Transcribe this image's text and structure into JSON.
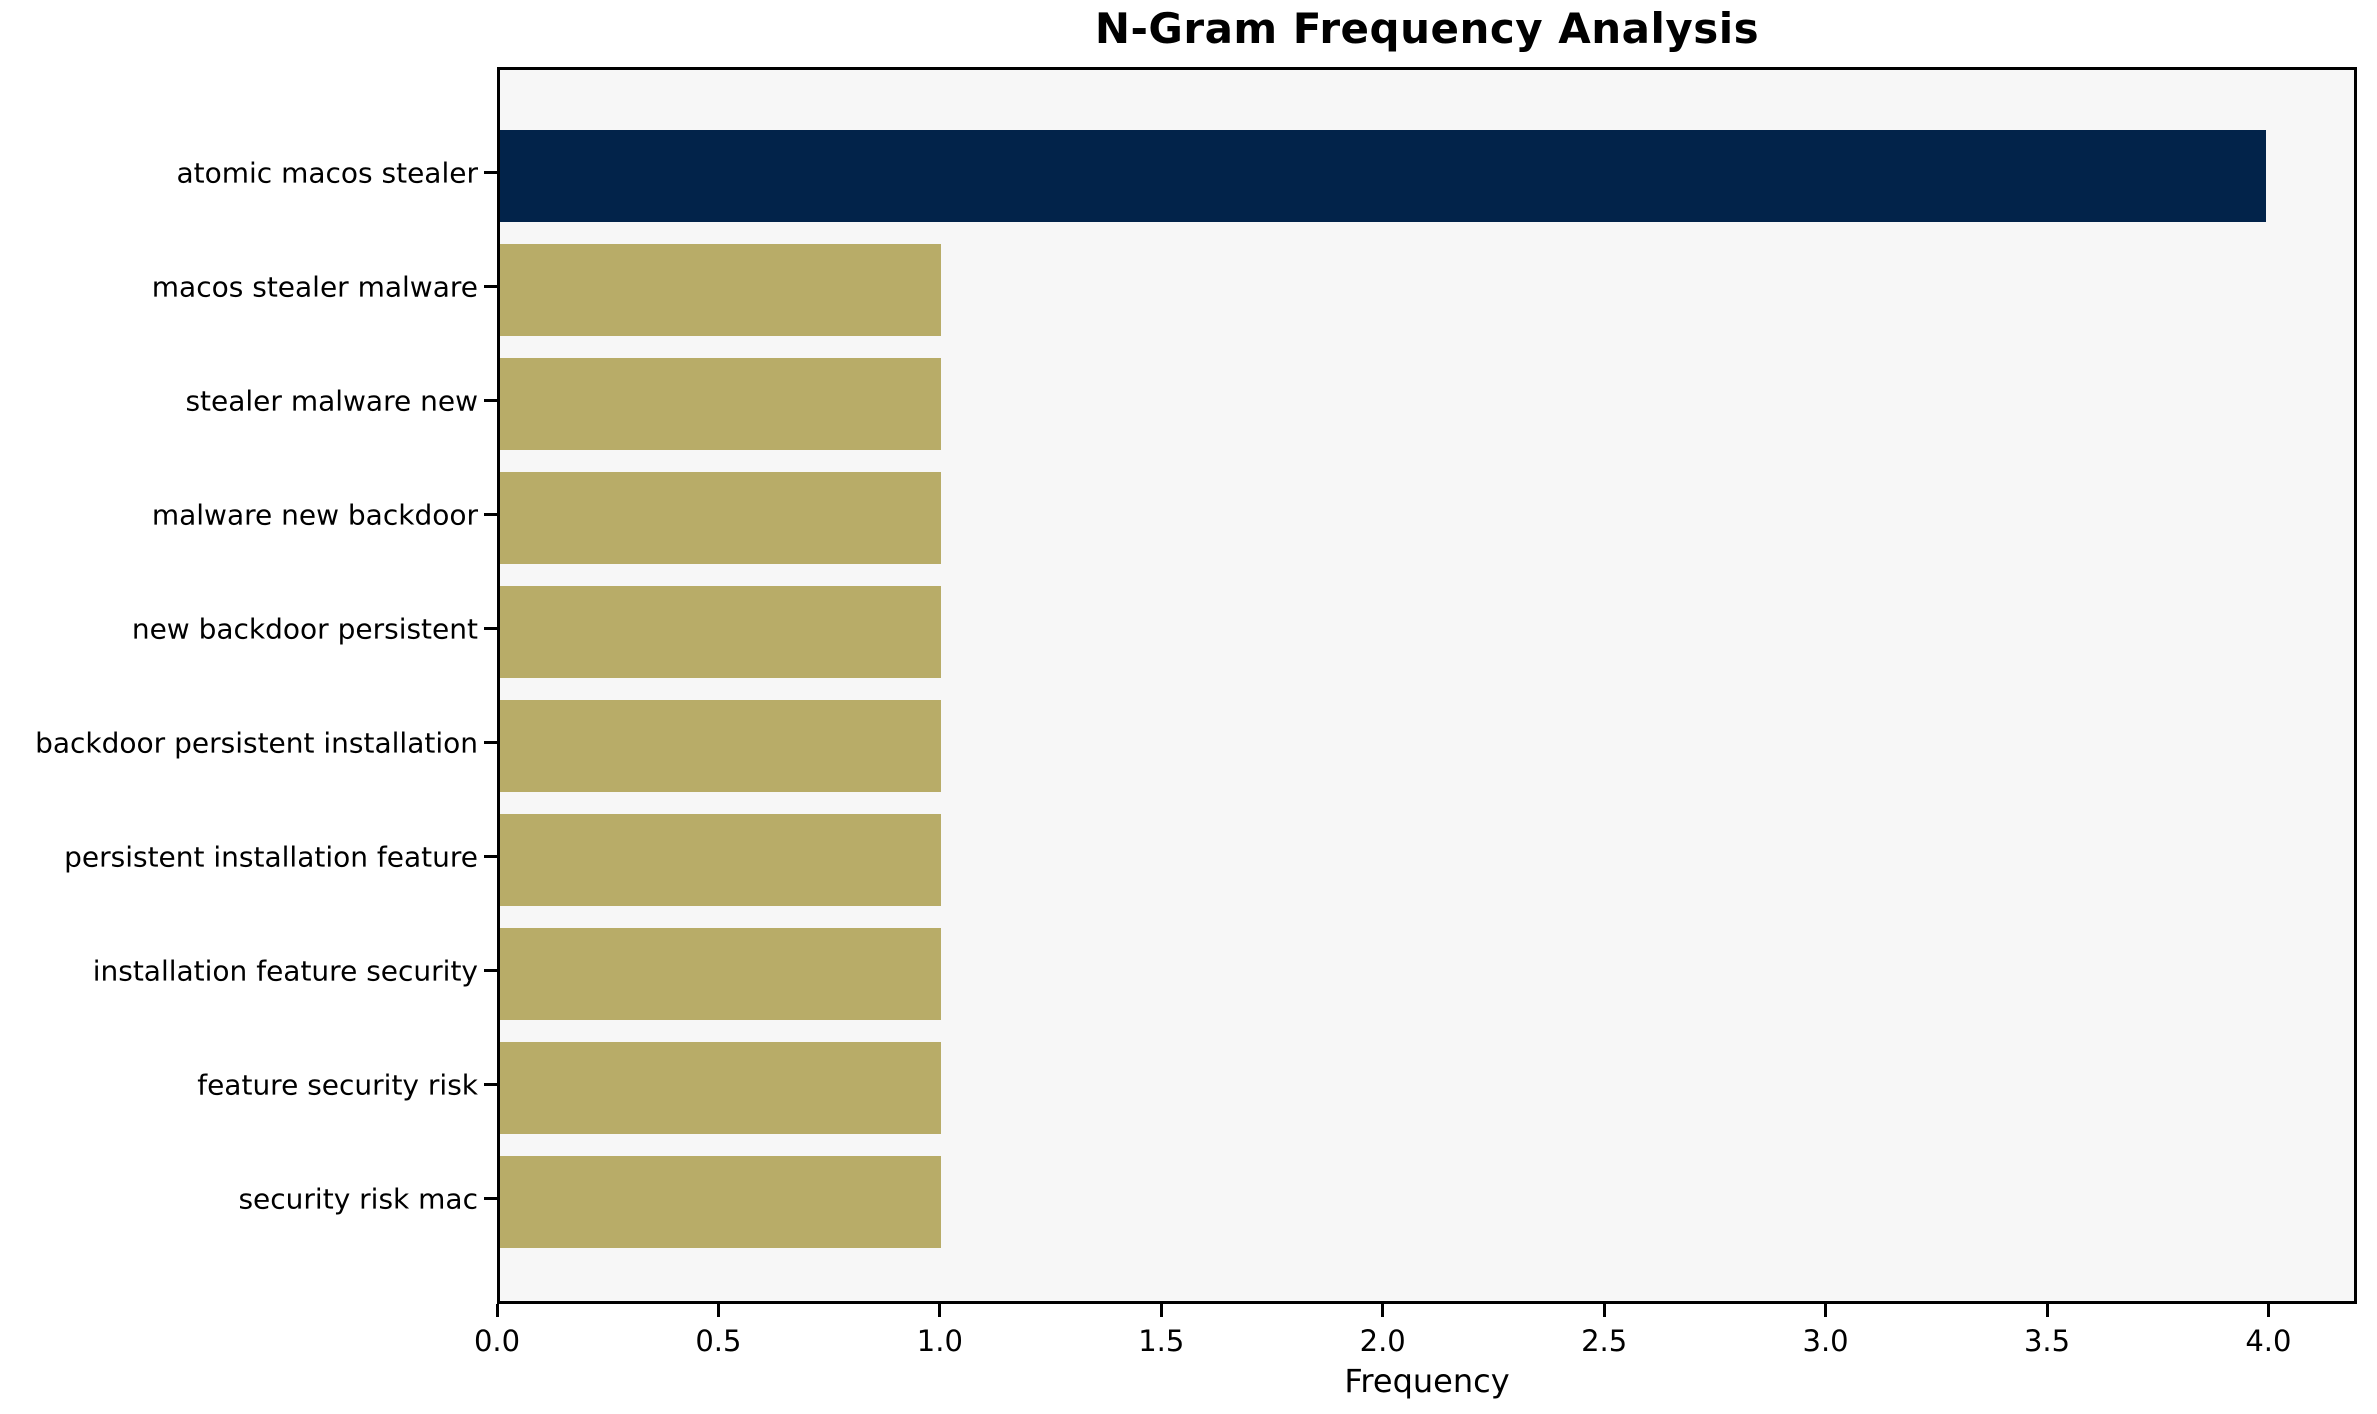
{
  "chart_data": {
    "type": "bar",
    "orientation": "horizontal",
    "title": "N-Gram Frequency Analysis",
    "xlabel": "Frequency",
    "ylabel": "",
    "categories": [
      "atomic macos stealer",
      "macos stealer malware",
      "stealer malware new",
      "malware new backdoor",
      "new backdoor persistent",
      "backdoor persistent installation",
      "persistent installation feature",
      "installation feature security",
      "feature security risk",
      "security risk mac"
    ],
    "values": [
      4,
      1,
      1,
      1,
      1,
      1,
      1,
      1,
      1,
      1
    ],
    "xlim": [
      0,
      4.2
    ],
    "x_ticks": [
      0.0,
      0.5,
      1.0,
      1.5,
      2.0,
      2.5,
      3.0,
      3.5,
      4.0
    ],
    "x_tick_labels": [
      "0.0",
      "0.5",
      "1.0",
      "1.5",
      "2.0",
      "2.5",
      "3.0",
      "3.5",
      "4.0"
    ],
    "grid": false,
    "legend": "none",
    "colors": {
      "highlight_bar": "#02234a",
      "default_bar": "#b8ac68",
      "plot_background": "#f7f7f7",
      "figure_background": "#ffffff",
      "spine": "#000000",
      "text": "#000000"
    },
    "highlight_index": 0
  }
}
